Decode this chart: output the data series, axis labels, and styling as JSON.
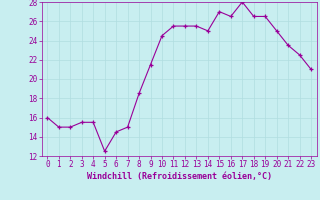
{
  "x": [
    0,
    1,
    2,
    3,
    4,
    5,
    6,
    7,
    8,
    9,
    10,
    11,
    12,
    13,
    14,
    15,
    16,
    17,
    18,
    19,
    20,
    21,
    22,
    23
  ],
  "y": [
    16,
    15,
    15,
    15.5,
    15.5,
    12.5,
    14.5,
    15,
    18.5,
    21.5,
    24.5,
    25.5,
    25.5,
    25.5,
    25,
    27,
    26.5,
    28,
    26.5,
    26.5,
    25,
    23.5,
    22.5,
    21
  ],
  "line_color": "#990099",
  "marker": "+",
  "marker_color": "#990099",
  "bg_color": "#c8eef0",
  "grid_color": "#b0dde0",
  "xlabel": "Windchill (Refroidissement éolien,°C)",
  "xlabel_color": "#990099",
  "tick_color": "#990099",
  "ylim": [
    12,
    28
  ],
  "xlim": [
    -0.5,
    23.5
  ],
  "yticks": [
    12,
    14,
    16,
    18,
    20,
    22,
    24,
    26,
    28
  ],
  "xticks": [
    0,
    1,
    2,
    3,
    4,
    5,
    6,
    7,
    8,
    9,
    10,
    11,
    12,
    13,
    14,
    15,
    16,
    17,
    18,
    19,
    20,
    21,
    22,
    23
  ],
  "font_size": 5.5,
  "xlabel_fontsize": 6.0
}
